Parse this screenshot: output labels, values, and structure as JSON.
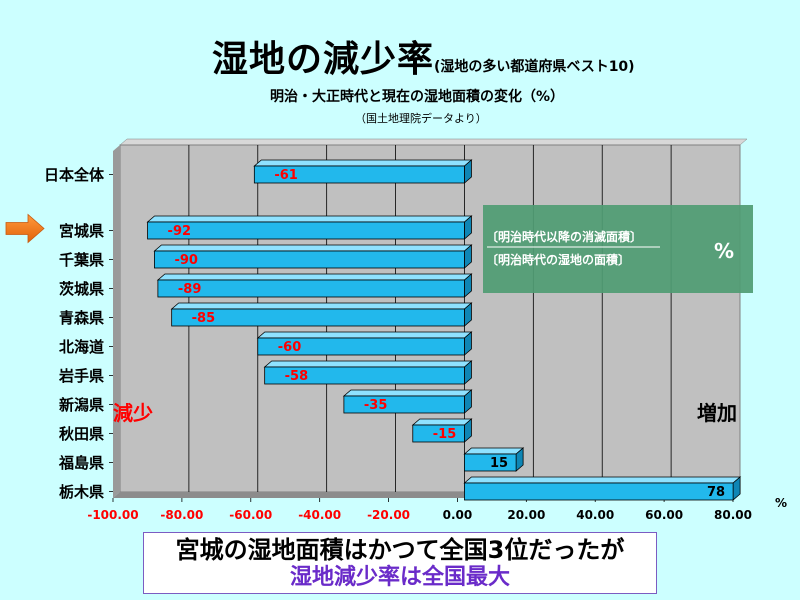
{
  "header": {
    "title": "湿地の減少率",
    "title_sub": "(湿地の多い都道府県ベスト10)",
    "subtitle": "明治・大正時代と現在の湿地面積の変化（%）",
    "source": "（国土地理院データより）"
  },
  "chart_data": {
    "type": "bar",
    "orientation": "horizontal",
    "categories": [
      "日本全体",
      "宮城県",
      "千葉県",
      "茨城県",
      "青森県",
      "北海道",
      "岩手県",
      "新潟県",
      "秋田県",
      "福島県",
      "栃木県"
    ],
    "values": [
      -61,
      -92,
      -90,
      -89,
      -85,
      -60,
      -58,
      -35,
      -15,
      15,
      78
    ],
    "value_labels": [
      "-61",
      "-92",
      "-90",
      "-89",
      "-85",
      "-60",
      "-58",
      "-35",
      "-15",
      "15",
      "78"
    ],
    "xlim": [
      -100,
      80
    ],
    "xticks": [
      "-100.00",
      "-80.00",
      "-60.00",
      "-40.00",
      "-20.00",
      "0.00",
      "20.00",
      "40.00",
      "60.00",
      "80.00"
    ],
    "xunit": "%",
    "grid": "vertical",
    "highlight_category": "宮城県",
    "annotations": {
      "decrease": "減少",
      "increase": "増加"
    },
    "formula": {
      "numerator": "〔明治時代以降の消滅面積〕",
      "denominator": "〔明治時代の湿地の面積〕",
      "unit": "%"
    },
    "colors": {
      "bar": "#22b8ec",
      "plot_bg": "#c0c0c0",
      "negative_label": "#ff0000",
      "formula_box": "#4f9c73"
    }
  },
  "caption": {
    "line1": "宮城の湿地面積はかつて全国3位だったが",
    "line2": "湿地減少率は全国最大"
  }
}
